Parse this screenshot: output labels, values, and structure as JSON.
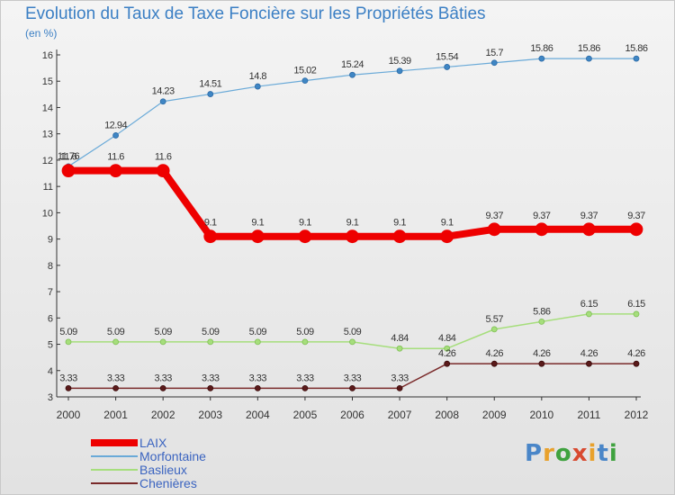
{
  "title": "Evolution du Taux de Taxe Foncière sur les Propriétés Bâties",
  "unit": "(en %)",
  "logo": {
    "letters": [
      "P",
      "r",
      "o",
      "x",
      "i",
      "t",
      "i"
    ],
    "colors": [
      "#4a86c8",
      "#e8a12c",
      "#3fa23f",
      "#d84a30",
      "#e8a12c",
      "#4a86c8",
      "#3fa23f"
    ]
  },
  "chart_data": {
    "type": "line",
    "x": [
      "2000",
      "2001",
      "2002",
      "2003",
      "2004",
      "2005",
      "2006",
      "2007",
      "2008",
      "2009",
      "2010",
      "2011",
      "2012"
    ],
    "ylim": [
      3,
      16
    ],
    "yticks": [
      3,
      4,
      5,
      6,
      7,
      8,
      9,
      10,
      11,
      12,
      13,
      14,
      15,
      16
    ],
    "grid": false,
    "legend_position": "bottom-left",
    "series": [
      {
        "name": "LAIX",
        "color": "#ee0000",
        "values": [
          11.6,
          11.6,
          11.6,
          9.1,
          9.1,
          9.1,
          9.1,
          9.1,
          9.1,
          9.37,
          9.37,
          9.37,
          9.37
        ],
        "labels": [
          "11.6",
          "11.6",
          "11.6",
          "9.1",
          "9.1",
          "9.1",
          "9.1",
          "9.1",
          "9.1",
          "9.37",
          "9.37",
          "9.37",
          "9.37"
        ]
      },
      {
        "name": "Morfontaine",
        "color": "#6aaad8",
        "values": [
          11.76,
          12.94,
          14.23,
          14.51,
          14.8,
          15.02,
          15.24,
          15.39,
          15.54,
          15.7,
          15.86,
          15.86,
          15.86
        ],
        "labels": [
          "11.76",
          "12.94",
          "14.23",
          "14.51",
          "14.8",
          "15.02",
          "15.24",
          "15.39",
          "15.54",
          "15.7",
          "15.86",
          "15.86",
          "15.86"
        ]
      },
      {
        "name": "Baslieux",
        "color": "#a6de7c",
        "values": [
          5.09,
          5.09,
          5.09,
          5.09,
          5.09,
          5.09,
          5.09,
          4.84,
          4.84,
          5.57,
          5.86,
          6.15,
          6.15
        ],
        "labels": [
          "5.09",
          "5.09",
          "5.09",
          "5.09",
          "5.09",
          "5.09",
          "5.09",
          "4.84",
          "4.84",
          "5.57",
          "5.86",
          "6.15",
          "6.15"
        ]
      },
      {
        "name": "Chenières",
        "color": "#7a2a2a",
        "values": [
          3.33,
          3.33,
          3.33,
          3.33,
          3.33,
          3.33,
          3.33,
          3.33,
          4.26,
          4.26,
          4.26,
          4.26,
          4.26
        ],
        "labels": [
          "3.33",
          "3.33",
          "3.33",
          "3.33",
          "3.33",
          "3.33",
          "3.33",
          "3.33",
          "4.26",
          "4.26",
          "4.26",
          "4.26",
          "4.26"
        ]
      }
    ]
  }
}
